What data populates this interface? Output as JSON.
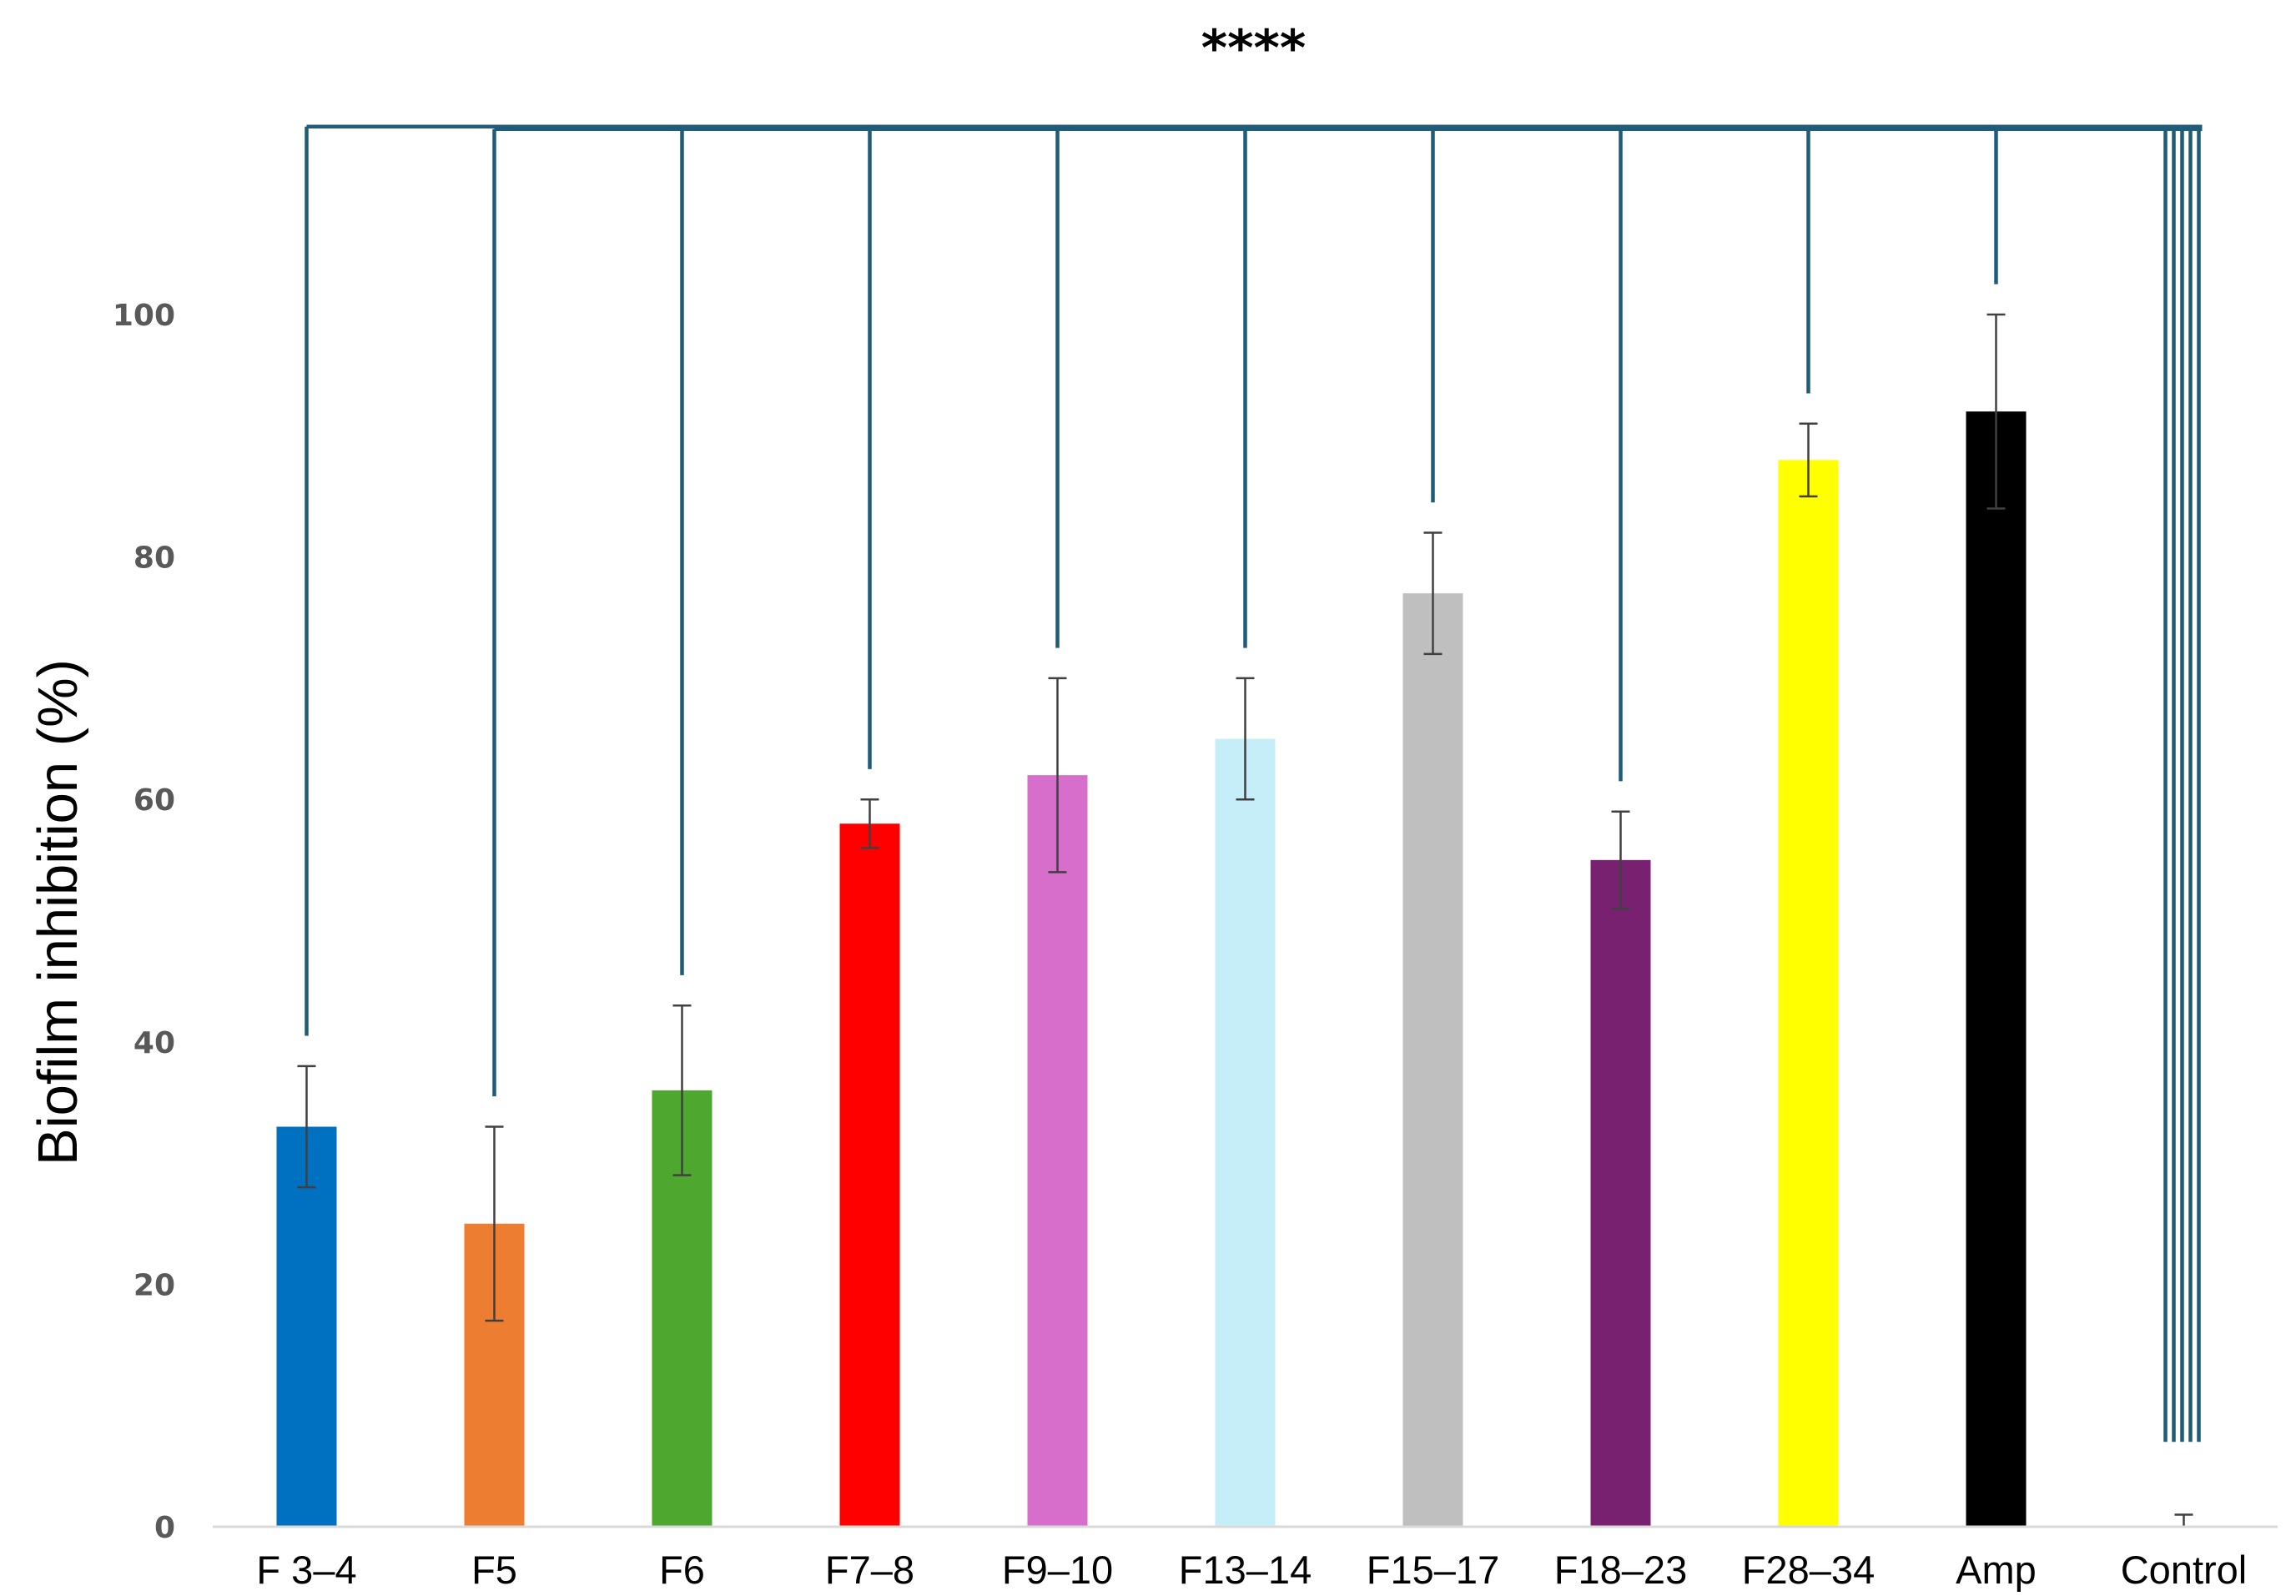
{
  "chart_data": {
    "type": "bar",
    "title": "",
    "xlabel": "",
    "ylabel": "Biofilm inhibition (%)",
    "ylim": [
      0,
      100
    ],
    "yticks": [
      0,
      20,
      40,
      60,
      80,
      100
    ],
    "grid": false,
    "legend": "none",
    "categories": [
      "F 3–4",
      "F5",
      "F6",
      "F7–8",
      "F9–10",
      "F13–14",
      "F15–17",
      "F18–23",
      "F28–34",
      "Amp",
      "Control"
    ],
    "values": [
      33,
      25,
      36,
      58,
      62,
      65,
      77,
      55,
      88,
      92,
      0
    ],
    "errors": [
      5,
      8,
      7,
      2,
      8,
      5,
      5,
      4,
      3,
      8,
      1
    ],
    "colors": [
      "#0070C0",
      "#ED7D31",
      "#4EA72E",
      "#FF0000",
      "#D86ECC",
      "#C6EEF9",
      "#BFBFBF",
      "#782170",
      "#FFFF00",
      "#000000",
      "#000000"
    ],
    "significance": {
      "label": "****",
      "comparison": "Control",
      "line_color": "#1F5C7A"
    }
  }
}
